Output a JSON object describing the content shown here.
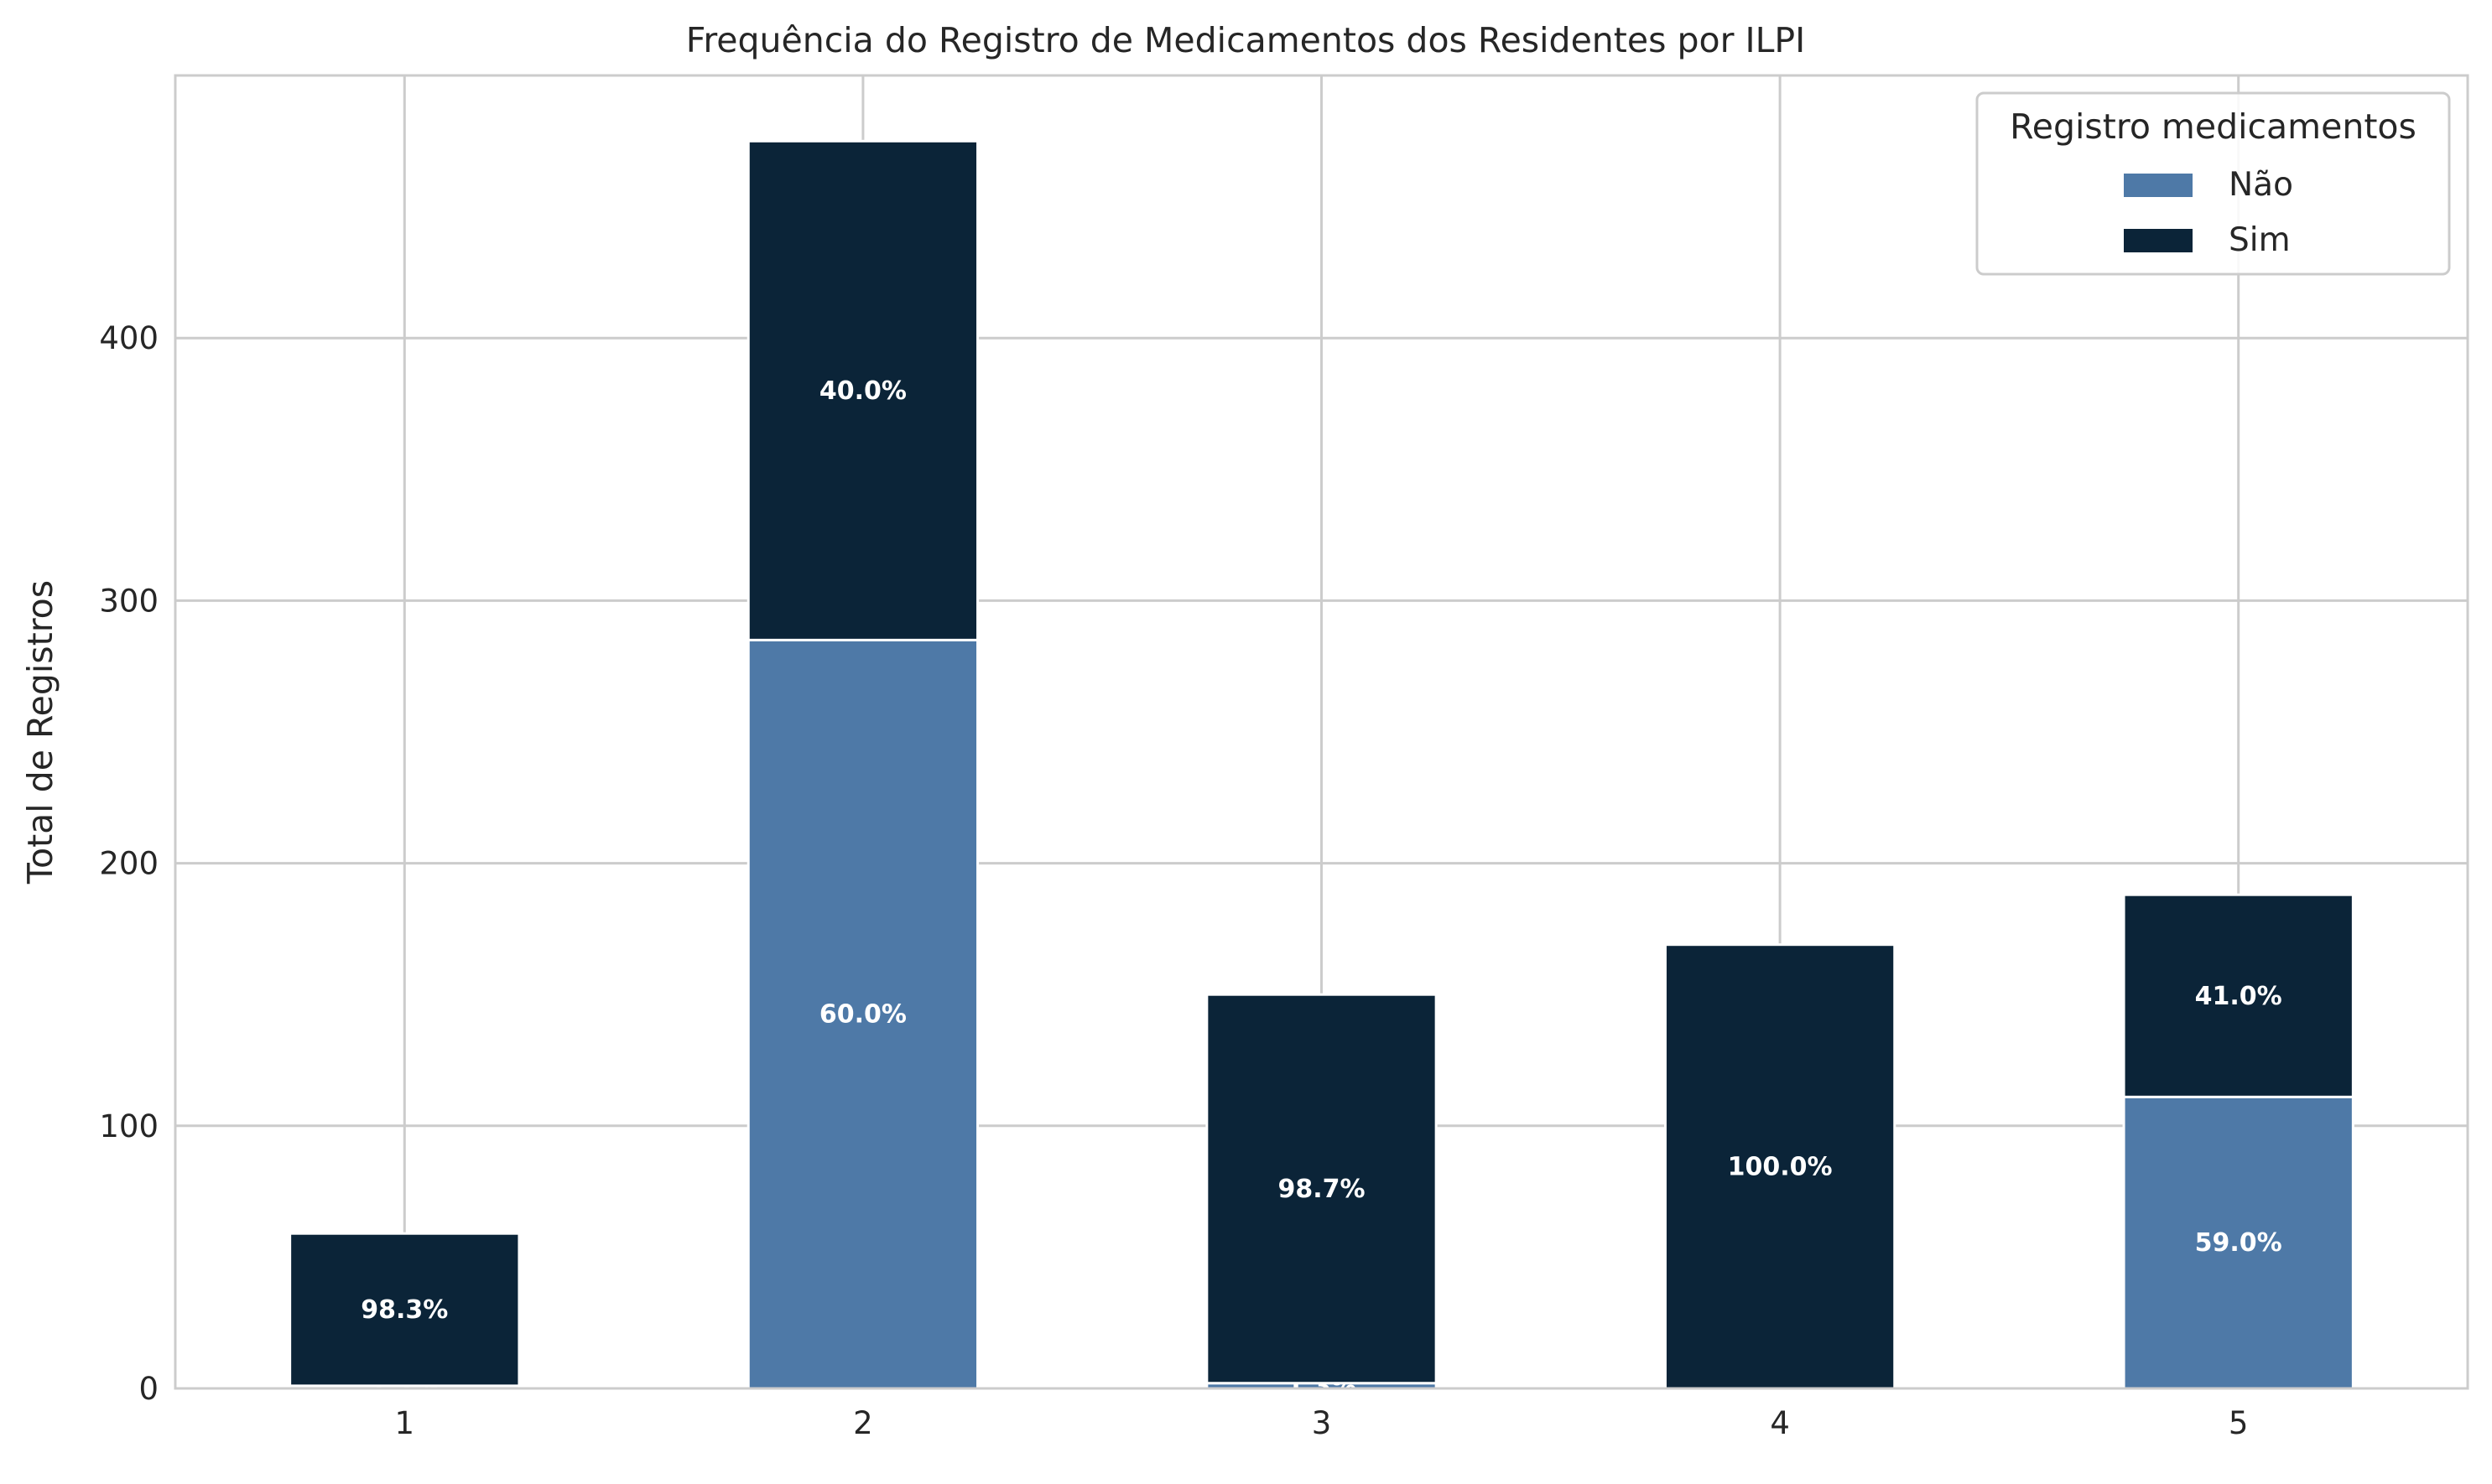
{
  "chart_data": {
    "type": "bar",
    "stacked": true,
    "title": "Frequência do Registro de Medicamentos dos Residentes por ILPI",
    "xlabel": "",
    "ylabel": "Total de Registros",
    "categories": [
      "1",
      "2",
      "3",
      "4",
      "5"
    ],
    "ylim": [
      0,
      500
    ],
    "yticks": [
      0,
      100,
      200,
      300,
      400
    ],
    "grid": true,
    "legend": {
      "title": "Registro medicamentos",
      "placement": "top-right"
    },
    "series": [
      {
        "name": "Não",
        "color": "#4e79a7",
        "values": [
          1,
          285,
          2,
          0,
          111
        ],
        "labels": [
          "1.7%",
          "60.0%",
          "1.3%",
          "",
          "59.0%"
        ]
      },
      {
        "name": "Sim",
        "color": "#0b2438",
        "values": [
          58,
          190,
          148,
          169,
          77
        ],
        "labels": [
          "98.3%",
          "40.0%",
          "98.7%",
          "100.0%",
          "41.0%"
        ]
      }
    ]
  }
}
